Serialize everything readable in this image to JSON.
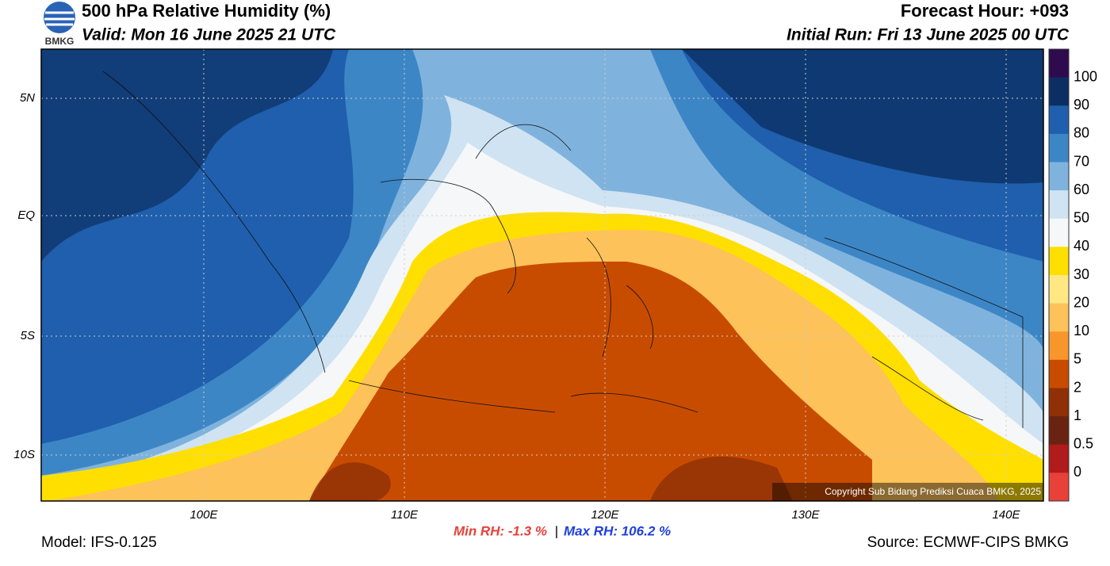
{
  "header": {
    "title": "500 hPa Relative Humidity (%)",
    "valid": "Valid: Mon 16 June 2025 21 UTC",
    "forecast_hour": "Forecast Hour: +093",
    "initial_run": "Initial Run: Fri 13 June 2025 00 UTC",
    "logo": "BMKG"
  },
  "map": {
    "lat_labels": [
      "5N",
      "EQ",
      "5S",
      "10S"
    ],
    "lon_labels": [
      "100E",
      "110E",
      "120E",
      "130E",
      "140E"
    ],
    "copyright": "Copyright Sub Bidang Prediksi Cuaca BMKG, 2025"
  },
  "colorbar": {
    "labels": [
      100,
      90,
      80,
      70,
      60,
      50,
      40,
      30,
      20,
      10,
      5,
      2,
      1,
      0.5,
      0
    ],
    "colors": [
      "#2e0b4f",
      "#0b2f63",
      "#1f5fad",
      "#3d86c6",
      "#7fb3dd",
      "#cfe3f2",
      "#f6f7f8",
      "#ffdf00",
      "#ffe784",
      "#fdc25a",
      "#f7962a",
      "#c84c00",
      "#8f3006",
      "#6a2310",
      "#b01b1b",
      "#e8413a"
    ]
  },
  "footer": {
    "min_rh": "Min RH:  -1.3 %",
    "separator": "|",
    "max_rh": "Max RH: 106.2 %",
    "model": "Model: IFS-0.125",
    "source": "Source: ECMWF-CIPS BMKG"
  }
}
